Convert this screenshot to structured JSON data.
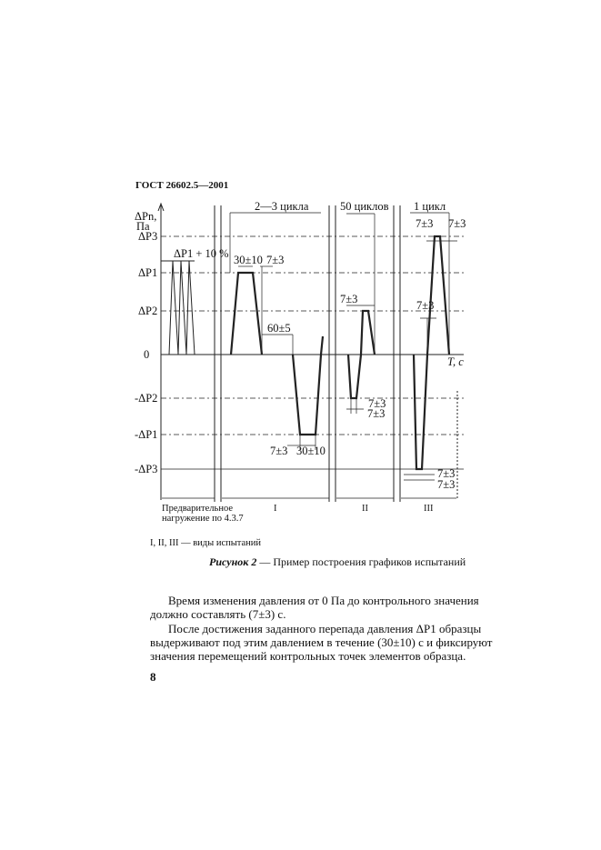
{
  "header": "ГОСТ 26602.5—2001",
  "diagram": {
    "y_axis_label": "ΔPn,",
    "y_axis_unit": "Па",
    "x_axis_label": "T, с",
    "levels": [
      "ΔP3",
      "ΔP1",
      "ΔP2",
      "0",
      "-ΔP2",
      "-ΔP1",
      "-ΔP3"
    ],
    "preload_label": "ΔP1 + 10 %",
    "range_top": [
      "2—3 цикла",
      "50 циклов",
      "1 цикл"
    ],
    "times": {
      "a": "30±10",
      "b": "7±3",
      "c": "60±5",
      "d": "7±3",
      "e": "30±10",
      "f": "7±3",
      "g": "7±3",
      "h": "7±3",
      "i": "7±3",
      "j": "7±3",
      "k": "7±3",
      "l": "7±3",
      "m": "7±3"
    },
    "sections": [
      "Предварительное",
      "нагружение по 4.3.7",
      "I",
      "II",
      "III"
    ]
  },
  "legend": "I, II, III — виды испытаний",
  "caption": {
    "label": "Рисунок 2",
    "text": " — Пример построения графиков испытаний"
  },
  "paragraphs": [
    "Время изменения давления от 0 Па до контрольного значения",
    "должно составлять (7±3) с.",
    "После достижения заданного перепада давления ΔP1 образцы",
    "выдерживают под этим давлением в течение (30±10) с и фиксируют",
    "значения перемещений контрольных точек элементов образца."
  ],
  "page_number": "8"
}
